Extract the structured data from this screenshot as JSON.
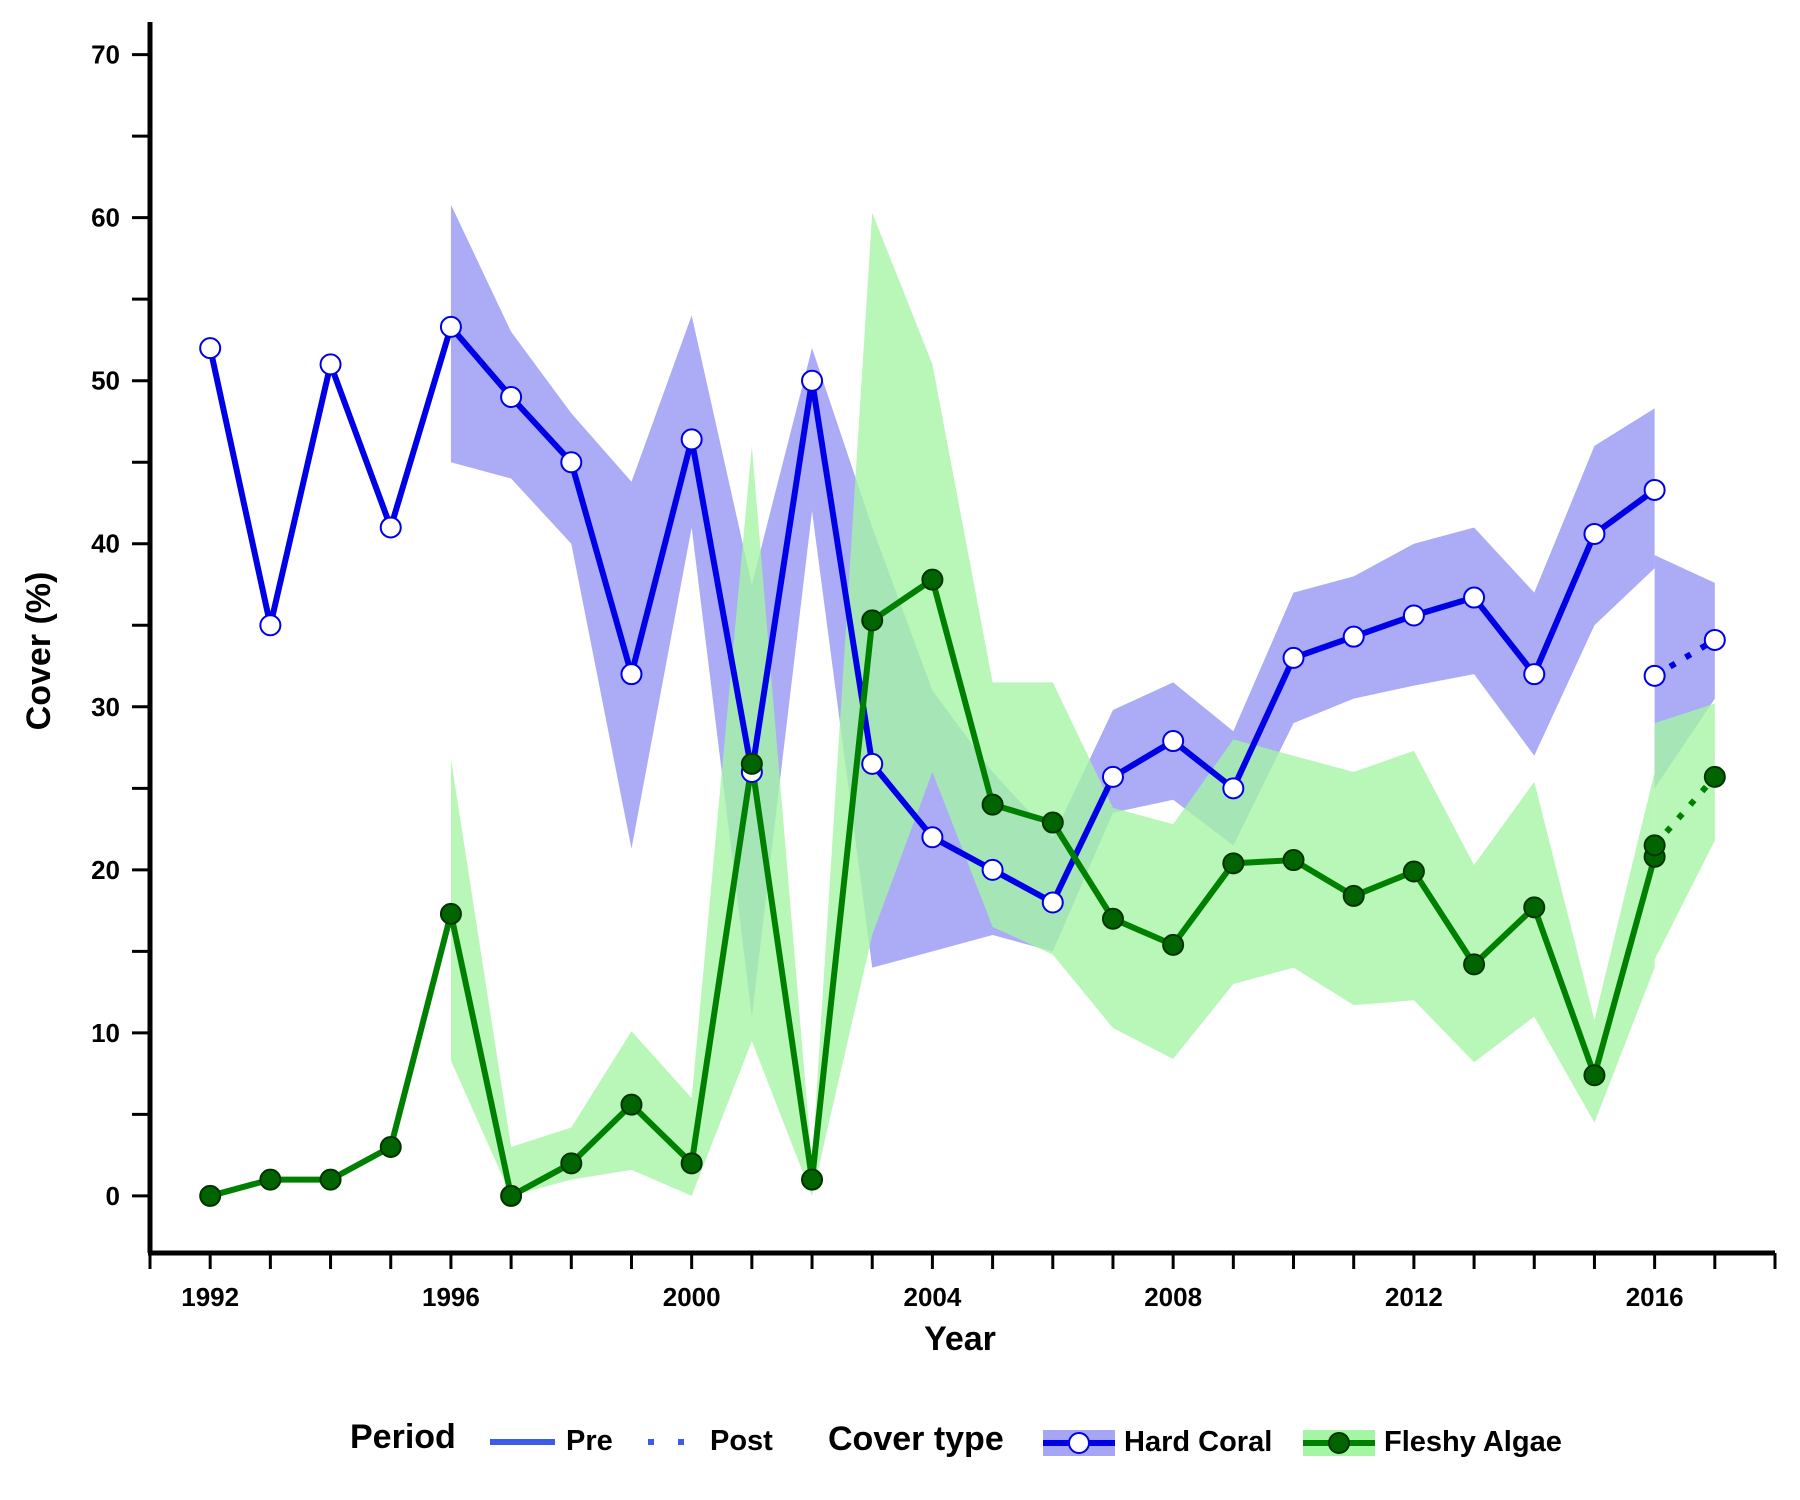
{
  "chart_data": {
    "type": "line",
    "xlabel": "Year",
    "ylabel": "Cover (%)",
    "xlim": [
      1991,
      2018
    ],
    "ylim": [
      -3.5,
      72
    ],
    "x_ticks": [
      1992,
      1996,
      2000,
      2004,
      2008,
      2012,
      2016
    ],
    "y_ticks": [
      0,
      10,
      20,
      30,
      40,
      50,
      60,
      70
    ],
    "grid": false,
    "legend": {
      "placement": "bottom",
      "period_title": "Period",
      "period_items": [
        {
          "label": "Pre",
          "style": "solid"
        },
        {
          "label": "Post",
          "style": "dotted"
        }
      ],
      "cover_title": "Cover type",
      "cover_items": [
        {
          "label": "Hard Coral",
          "series": "coral"
        },
        {
          "label": "Fleshy Algae",
          "series": "algae"
        }
      ]
    },
    "series": {
      "coral": {
        "name": "Hard Coral",
        "line_color": "#0000e6",
        "band_color": "#a6a6f5",
        "marker": "open-circle",
        "pre": [
          [
            1992,
            52
          ],
          [
            1993,
            35
          ],
          [
            1994,
            51
          ],
          [
            1995,
            41
          ],
          [
            1996,
            53.3
          ],
          [
            1997,
            49
          ],
          [
            1998,
            45
          ],
          [
            1999,
            32
          ],
          [
            2000,
            46.4
          ],
          [
            2001,
            26
          ],
          [
            2002,
            50
          ],
          [
            2003,
            26.5
          ],
          [
            2004,
            22
          ],
          [
            2005,
            20
          ],
          [
            2006,
            18
          ],
          [
            2007,
            25.7
          ],
          [
            2008,
            27.9
          ],
          [
            2009,
            25
          ],
          [
            2010,
            33
          ],
          [
            2011,
            34.3
          ],
          [
            2012,
            35.6
          ],
          [
            2013,
            36.7
          ],
          [
            2014,
            32
          ],
          [
            2015,
            40.6
          ],
          [
            2016,
            43.3
          ]
        ],
        "post": [
          [
            2016,
            31.9
          ],
          [
            2017,
            34.1
          ]
        ],
        "band_pre": [
          [
            1996,
            45,
            60.8
          ],
          [
            1997,
            44,
            53
          ],
          [
            1998,
            40,
            48
          ],
          [
            1999,
            21.3,
            43.8
          ],
          [
            2000,
            41,
            54
          ],
          [
            2001,
            11,
            37.5
          ],
          [
            2002,
            42,
            52
          ],
          [
            2003,
            14,
            41
          ],
          [
            2004,
            15,
            31
          ],
          [
            2005,
            16,
            26
          ],
          [
            2006,
            15,
            22
          ],
          [
            2007,
            23.5,
            29.8
          ],
          [
            2008,
            24.3,
            31.5
          ],
          [
            2009,
            21.5,
            28.5
          ],
          [
            2010,
            29,
            37
          ],
          [
            2011,
            30.5,
            38
          ],
          [
            2012,
            31.3,
            40
          ],
          [
            2013,
            32,
            41
          ],
          [
            2014,
            27,
            37
          ],
          [
            2015,
            35,
            46
          ],
          [
            2016,
            38.5,
            48.3
          ]
        ],
        "band_post": [
          [
            2016,
            25,
            39.3
          ],
          [
            2017,
            30.5,
            37.6
          ]
        ]
      },
      "algae": {
        "name": "Fleshy Algae",
        "line_color": "#008000",
        "band_color": "#a4f5a4",
        "marker": "filled-circle",
        "pre": [
          [
            1992,
            0
          ],
          [
            1993,
            1
          ],
          [
            1994,
            1
          ],
          [
            1995,
            3
          ],
          [
            1996,
            17.3
          ],
          [
            1997,
            0
          ],
          [
            1998,
            2
          ],
          [
            1999,
            5.6
          ],
          [
            2000,
            2
          ],
          [
            2001,
            26.5
          ],
          [
            2002,
            1
          ],
          [
            2003,
            35.3
          ],
          [
            2004,
            37.8
          ],
          [
            2005,
            24
          ],
          [
            2006,
            22.9
          ],
          [
            2007,
            17
          ],
          [
            2008,
            15.4
          ],
          [
            2009,
            20.4
          ],
          [
            2010,
            20.6
          ],
          [
            2011,
            18.4
          ],
          [
            2012,
            19.9
          ],
          [
            2013,
            14.2
          ],
          [
            2014,
            17.7
          ],
          [
            2015,
            7.4
          ],
          [
            2016,
            20.8
          ]
        ],
        "post": [
          [
            2016,
            21.5
          ],
          [
            2017,
            25.7
          ]
        ],
        "band_pre": [
          [
            1996,
            8.3,
            26.8
          ],
          [
            1997,
            0,
            3
          ],
          [
            1998,
            1,
            4.2
          ],
          [
            1999,
            1.6,
            10.1
          ],
          [
            2000,
            0,
            6
          ],
          [
            2001,
            9.5,
            46
          ],
          [
            2002,
            0,
            2
          ],
          [
            2003,
            16,
            60.3
          ],
          [
            2004,
            26,
            51
          ],
          [
            2005,
            16.5,
            31.5
          ],
          [
            2006,
            14.8,
            31.5
          ],
          [
            2007,
            10.3,
            23.8
          ],
          [
            2008,
            8.4,
            22.8
          ],
          [
            2009,
            13,
            28
          ],
          [
            2010,
            14,
            27
          ],
          [
            2011,
            11.7,
            26
          ],
          [
            2012,
            12,
            27.3
          ],
          [
            2013,
            8.2,
            20.3
          ],
          [
            2014,
            11,
            25.4
          ],
          [
            2015,
            4.5,
            10.8
          ],
          [
            2016,
            14,
            26
          ]
        ],
        "band_post": [
          [
            2016,
            14.5,
            29
          ],
          [
            2017,
            21.8,
            30.2
          ]
        ]
      }
    }
  }
}
